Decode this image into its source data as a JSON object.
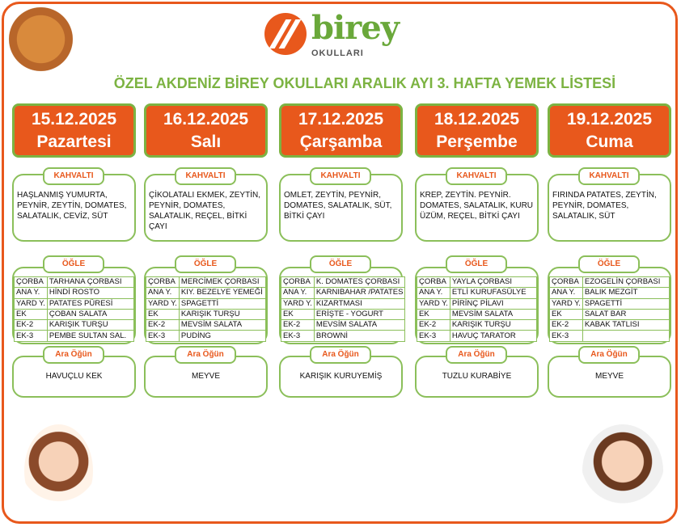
{
  "logo": {
    "brand": "birey",
    "sub": "OKULLARI"
  },
  "title": "ÖZEL AKDENİZ BİREY OKULLARI ARALIK AYI 3. HAFTA YEMEK LİSTESİ",
  "labels": {
    "kahvalti": "KAHVALTI",
    "ogle": "ÖĞLE",
    "ara": "Ara Öğün"
  },
  "row_labels": [
    "ÇORBA",
    "ANA Y.",
    "YARD Y.",
    "EK",
    "EK-2",
    "EK-3"
  ],
  "days": [
    {
      "date": "15.12.2025",
      "day": "Pazartesi",
      "kahvalti": "HAŞLANMIŞ YUMURTA, PEYNİR, ZEYTİN, DOMATES, SALATALIK, CEVİZ, SÜT",
      "ogle": [
        "TARHANA ÇORBASI",
        "HİNDİ ROSTO",
        "PATATES PÜRESİ",
        "ÇOBAN SALATA",
        "KARIŞIK TURŞU",
        "PEMBE SULTAN SAL."
      ],
      "ara": "HAVUÇLU KEK"
    },
    {
      "date": "16.12.2025",
      "day": "Salı",
      "kahvalti": "ÇİKOLATALI EKMEK, ZEYTİN, PEYNİR, DOMATES, SALATALIK, REÇEL, BİTKİ ÇAYI",
      "ogle": [
        "MERCİMEK ÇORBASI",
        "KIY. BEZELYE YEMEĞİ",
        "SPAGETTİ",
        "KARIŞIK TURŞU",
        "MEVSİM SALATA",
        "PUDİNG"
      ],
      "ara": "MEYVE"
    },
    {
      "date": "17.12.2025",
      "day": "Çarşamba",
      "kahvalti": "OMLET, ZEYTİN, PEYNİR, DOMATES, SALATALIK, SÜT, BİTKİ ÇAYI",
      "ogle": [
        "K. DOMATES ÇORBASI",
        "KARNIBAHAR /PATATES",
        "KIZARTMASI",
        "ERİŞTE - YOGURT",
        "MEVSİM SALATA",
        "BROWNİ"
      ],
      "ara": "KARIŞIK KURUYEMİŞ"
    },
    {
      "date": "18.12.2025",
      "day": "Perşembe",
      "kahvalti": "KREP, ZEYTİN. PEYNİR. DOMATES, SALATALIK, KURU ÜZÜM, REÇEL, BİTKİ ÇAYI",
      "ogle": [
        "YAYLA ÇORBASI",
        "ETLİ KURUFASÜLYE",
        "PİRİNÇ PİLAVI",
        "MEVSİM SALATA",
        "KARIŞIK TURŞU",
        "HAVUÇ TARATOR"
      ],
      "ara": "TUZLU KURABİYE"
    },
    {
      "date": "19.12.2025",
      "day": "Cuma",
      "kahvalti": "FIRINDA PATATES, ZEYTİN, PEYNİR, DOMATES, SALATALIK, SÜT",
      "ogle": [
        "EZOGELİN ÇORBASI",
        "BALIK MEZGİT",
        "SPAGETTİ",
        "SALAT BAR",
        "KABAK TATLISI",
        ""
      ],
      "ara": "MEYVE"
    }
  ],
  "colors": {
    "orange": "#e8581c",
    "green": "#7cb342"
  }
}
